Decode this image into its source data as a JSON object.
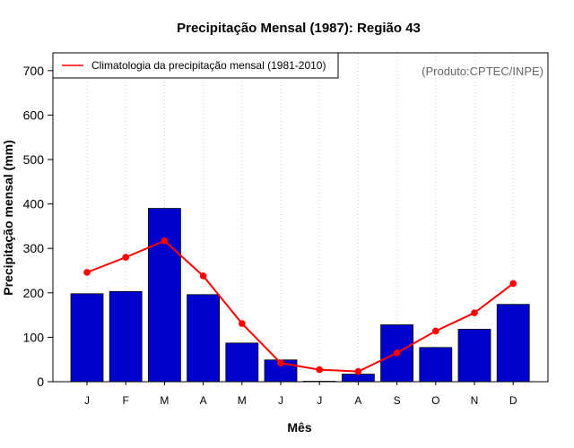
{
  "chart_data": {
    "type": "bar",
    "title": "Precipitação Mensal (1987): Região 43",
    "xlabel": "Mês",
    "ylabel": "Precipitação mensal (mm)",
    "ylim": [
      0,
      740
    ],
    "yticks": [
      0,
      100,
      200,
      300,
      400,
      500,
      600,
      700
    ],
    "grid": "vertical dotted",
    "credit": "(Produto:CPTEC/INPE)",
    "categories": [
      "J",
      "F",
      "M",
      "A",
      "M",
      "J",
      "J",
      "A",
      "S",
      "O",
      "N",
      "D"
    ],
    "series": [
      {
        "name": "Precipitação mensal (1987)",
        "type": "bar",
        "color": "#0000cc",
        "values": [
          198,
          203,
          390,
          196,
          87,
          49,
          1,
          17,
          128,
          77,
          118,
          174
        ]
      },
      {
        "name": "Climatologia da precipitação mensal (1981-2010)",
        "type": "line",
        "color": "#ff0000",
        "values": [
          246,
          280,
          317,
          238,
          131,
          42,
          27,
          23,
          65,
          114,
          155,
          221
        ]
      }
    ],
    "legend": {
      "position": "top-left",
      "entries": [
        "Climatologia da precipitação mensal (1981-2010)"
      ]
    }
  }
}
